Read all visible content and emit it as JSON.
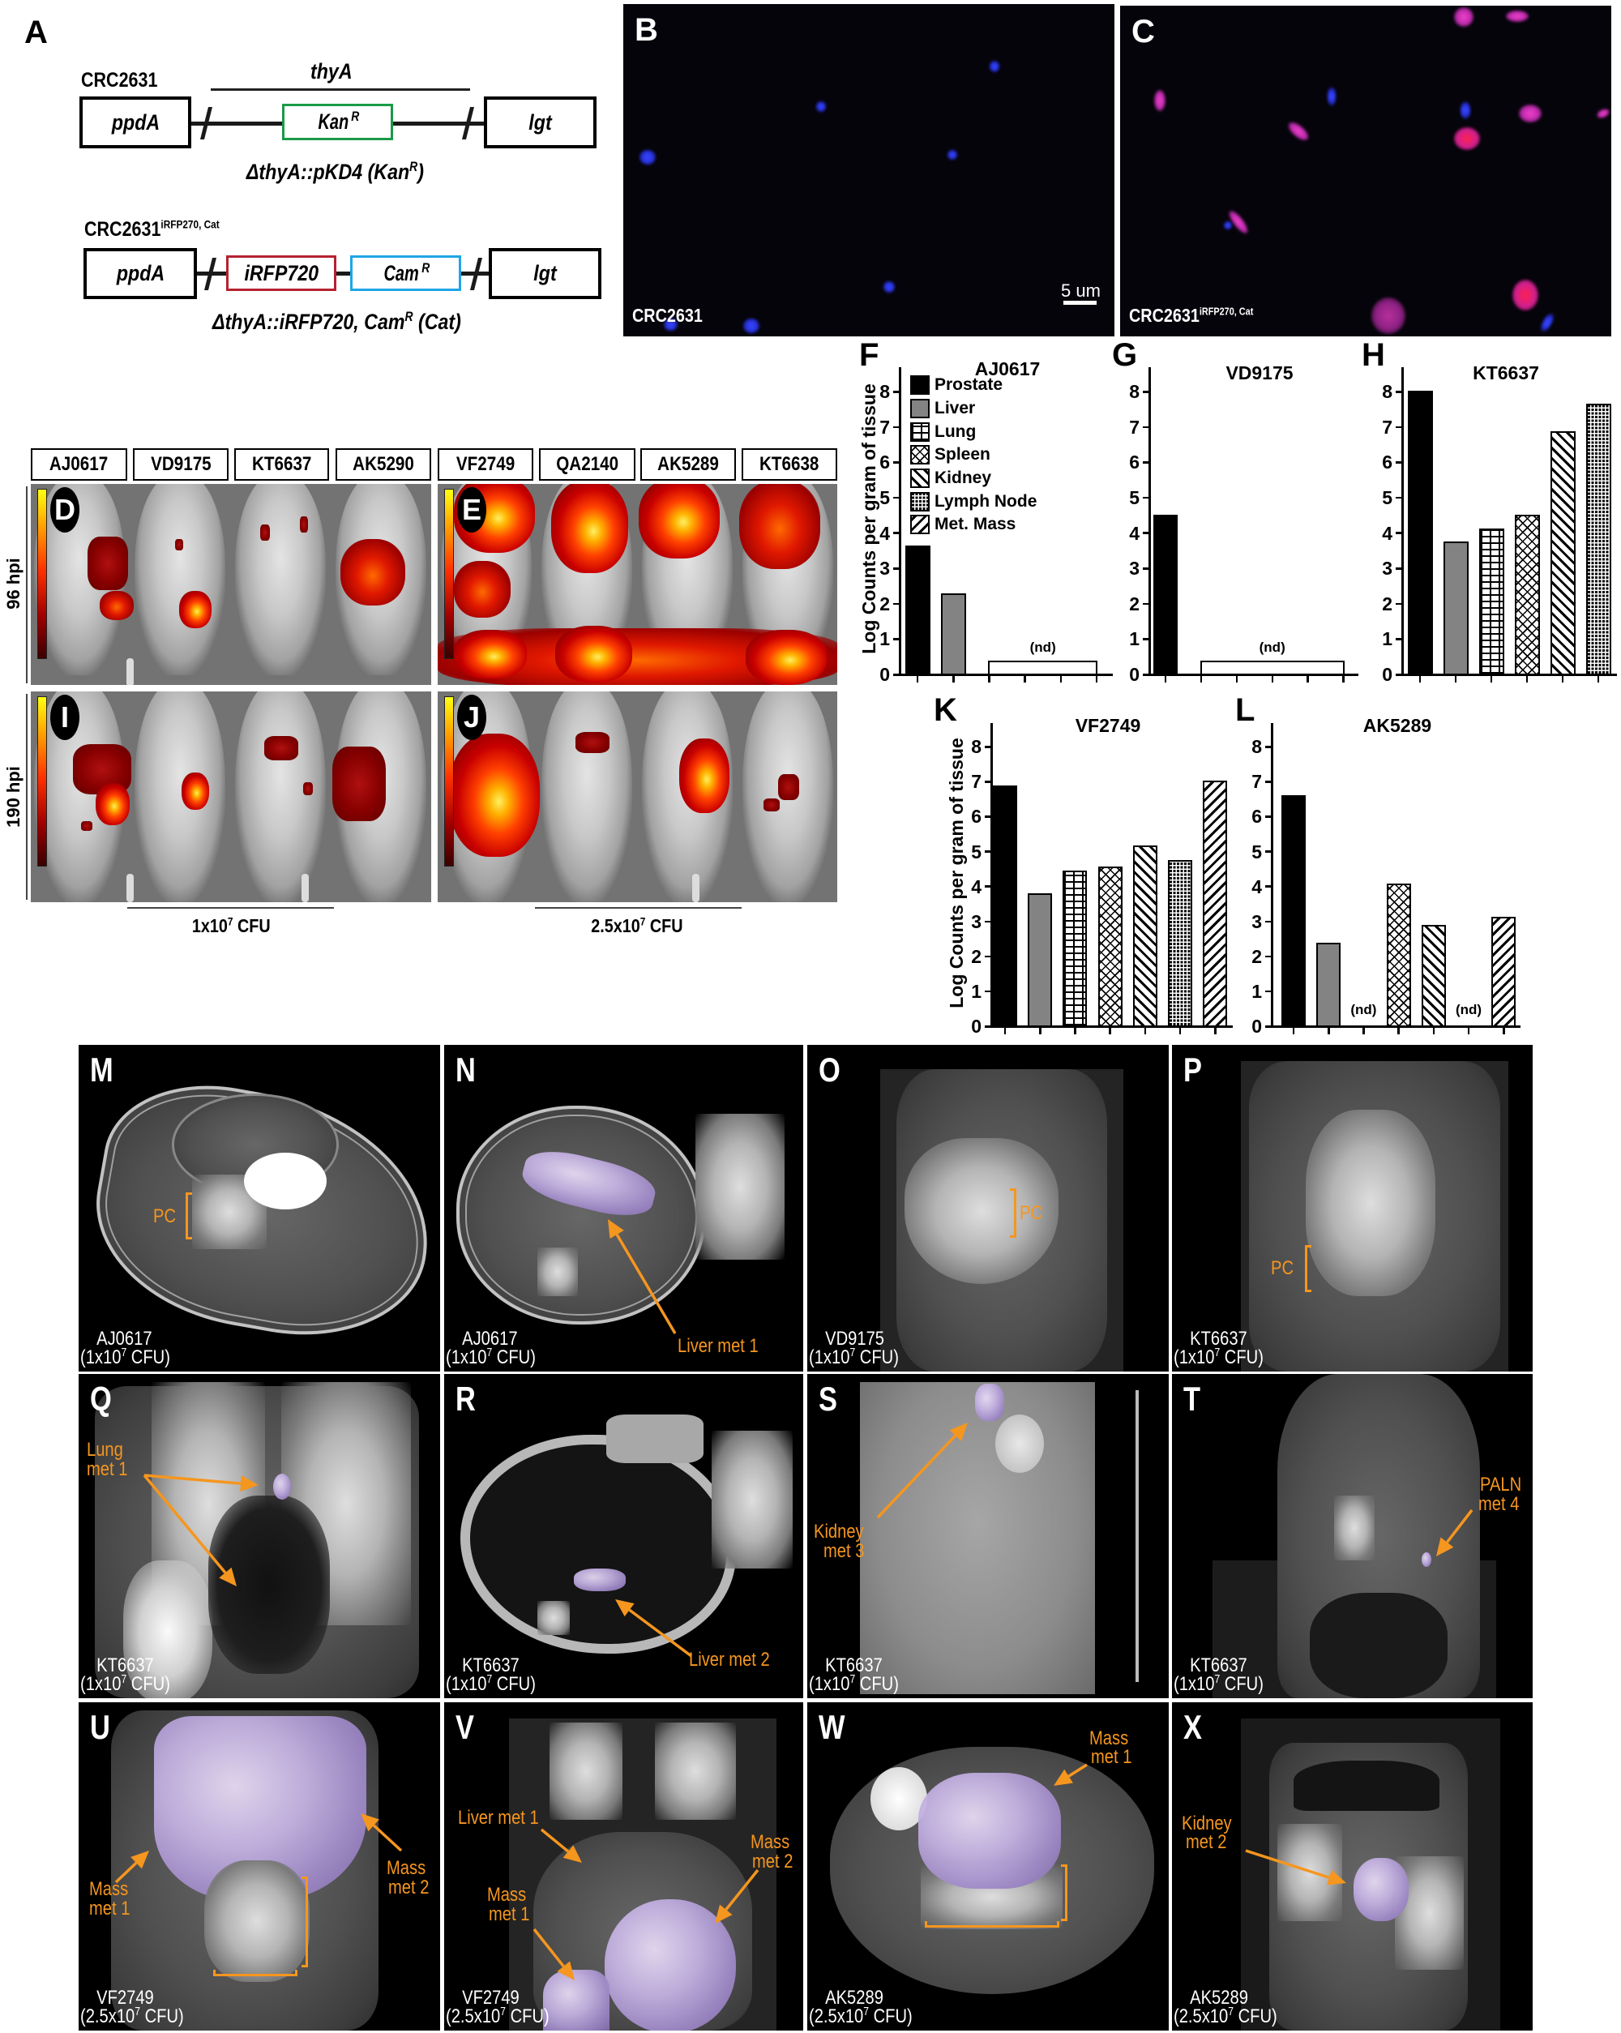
{
  "figure": {
    "colors": {
      "annotation": "#f5961f",
      "overlay": "#c6b3e4",
      "kan_box": "#1a9a48",
      "irfp_box": "#b52231",
      "cam_box": "#1fa6e6"
    },
    "panel_a": {
      "label": "A",
      "wildtype": {
        "strain": "CRC2631",
        "gene_span": "thyA",
        "upstream_gene": "ppdA",
        "marker": "Kan",
        "marker_sup": "R",
        "downstream_gene": "lgt",
        "genotype": "ΔthyA::pKD4 (Kan",
        "genotype_sup": "R",
        "genotype_end": ")"
      },
      "reporter": {
        "strain": "CRC2631",
        "strain_sup": "iRFP270, Cat",
        "upstream_gene": "ppdA",
        "reporter_gene": "iRFP720",
        "marker": "Cam",
        "marker_sup": "R",
        "downstream_gene": "lgt",
        "genotype": "ΔthyA::iRFP720, Cam",
        "genotype_sup": "R",
        "genotype_end": " (Cat)"
      }
    },
    "panel_b": {
      "label": "B",
      "strain": "CRC2631",
      "scale_bar": "5 um"
    },
    "panel_c": {
      "label": "C",
      "strain": "CRC2631",
      "strain_sup": "iRFP270, Cat"
    },
    "ivis": {
      "mouse_labels": [
        "AJ0617",
        "VD9175",
        "KT6637",
        "AK5290",
        "VF2749",
        "QA2140",
        "AK5289",
        "KT6638"
      ],
      "timepoints": [
        "96 hpi",
        "190 hpi"
      ],
      "panels": [
        "D",
        "E",
        "I",
        "J"
      ],
      "doses": [
        {
          "base": "1x10",
          "exp": "7",
          "unit": " CFU"
        },
        {
          "base": "2.5x10",
          "exp": "7",
          "unit": " CFU"
        }
      ]
    },
    "mri_panels": [
      {
        "label": "M",
        "sample": "AJ0617",
        "dose": {
          "base": "(1x10",
          "exp": "7",
          "unit": " CFU)"
        },
        "annotations": [
          {
            "lines": [
              "PC"
            ]
          }
        ]
      },
      {
        "label": "N",
        "sample": "AJ0617",
        "dose": {
          "base": "(1x10",
          "exp": "7",
          "unit": " CFU)"
        },
        "annotations": [
          {
            "lines": [
              "Liver met 1"
            ]
          }
        ]
      },
      {
        "label": "O",
        "sample": "VD9175",
        "dose": {
          "base": "(1x10",
          "exp": "7",
          "unit": " CFU)"
        },
        "annotations": [
          {
            "lines": [
              "PC"
            ]
          }
        ]
      },
      {
        "label": "P",
        "sample": "KT6637",
        "dose": {
          "base": "(1x10",
          "exp": "7",
          "unit": " CFU)"
        },
        "annotations": [
          {
            "lines": [
              "PC"
            ]
          }
        ]
      },
      {
        "label": "Q",
        "sample": "KT6637",
        "dose": {
          "base": "(1x10",
          "exp": "7",
          "unit": " CFU)"
        },
        "annotations": [
          {
            "lines": [
              "Lung",
              "met 1"
            ]
          }
        ]
      },
      {
        "label": "R",
        "sample": "KT6637",
        "dose": {
          "base": "(1x10",
          "exp": "7",
          "unit": " CFU)"
        },
        "annotations": [
          {
            "lines": [
              "Liver met 2"
            ]
          }
        ]
      },
      {
        "label": "S",
        "sample": "KT6637",
        "dose": {
          "base": "(1x10",
          "exp": "7",
          "unit": " CFU)"
        },
        "annotations": [
          {
            "lines": [
              "Kidney",
              "met 3"
            ]
          }
        ]
      },
      {
        "label": "T",
        "sample": "KT6637",
        "dose": {
          "base": "(1x10",
          "exp": "7",
          "unit": " CFU)"
        },
        "annotations": [
          {
            "lines": [
              "PALN",
              "met 4"
            ]
          }
        ]
      },
      {
        "label": "U",
        "sample": "VF2749",
        "dose": {
          "base": "(2.5x10",
          "exp": "7",
          "unit": " CFU)"
        },
        "annotations": [
          {
            "lines": [
              "Mass",
              "met 1"
            ]
          },
          {
            "lines": [
              "Mass",
              "met 2"
            ]
          }
        ]
      },
      {
        "label": "V",
        "sample": "VF2749",
        "dose": {
          "base": "(2.5x10",
          "exp": "7",
          "unit": " CFU)"
        },
        "annotations": [
          {
            "lines": [
              "Liver met 1"
            ]
          },
          {
            "lines": [
              "Mass",
              "met 1"
            ]
          },
          {
            "lines": [
              "Mass",
              "met 2"
            ]
          }
        ]
      },
      {
        "label": "W",
        "sample": "AK5289",
        "dose": {
          "base": "(2.5x10",
          "exp": "7",
          "unit": " CFU)"
        },
        "annotations": [
          {
            "lines": [
              "Mass",
              "met 1"
            ]
          }
        ]
      },
      {
        "label": "X",
        "sample": "AK5289",
        "dose": {
          "base": "(2.5x10",
          "exp": "7",
          "unit": " CFU)"
        },
        "annotations": [
          {
            "lines": [
              "Kidney",
              "met 2"
            ]
          }
        ]
      }
    ]
  },
  "chart_data": [
    {
      "panel": "F",
      "type": "bar",
      "title": "AJ0617",
      "ylabel": "Log Counts per gram of tissue",
      "ylim": [
        0,
        8
      ],
      "categories": [
        "Prostate",
        "Liver",
        "Lung",
        "Spleen",
        "Kidney",
        "Lymph Node"
      ],
      "values": [
        3.65,
        2.3,
        null,
        null,
        null,
        null
      ],
      "not_detected": {
        "label": "(nd)",
        "from": 2,
        "to": 5,
        "bracket_level": 0.4
      },
      "legend": [
        "Prostate",
        "Liver",
        "Lung",
        "Spleen",
        "Kidney",
        "Lymph Node",
        "Met. Mass"
      ],
      "legend_position": "upper-left inside"
    },
    {
      "panel": "G",
      "type": "bar",
      "title": "VD9175",
      "ylim": [
        0,
        8
      ],
      "categories": [
        "Prostate",
        "Liver",
        "Lung",
        "Spleen",
        "Kidney",
        "Lymph Node"
      ],
      "values": [
        4.52,
        null,
        null,
        null,
        null,
        null
      ],
      "not_detected": {
        "label": "(nd)",
        "from": 1,
        "to": 5,
        "bracket_level": 0.4
      }
    },
    {
      "panel": "H",
      "type": "bar",
      "title": "KT6637",
      "ylim": [
        0,
        8
      ],
      "categories": [
        "Prostate",
        "Liver",
        "Lung",
        "Spleen",
        "Kidney",
        "Lymph Node"
      ],
      "values": [
        8.02,
        3.77,
        4.12,
        4.52,
        6.88,
        7.67
      ]
    },
    {
      "panel": "K",
      "type": "bar",
      "title": "VF2749",
      "ylabel": "Log Counts per gram of tissue",
      "ylim": [
        0,
        8
      ],
      "categories": [
        "Prostate",
        "Liver",
        "Lung",
        "Spleen",
        "Kidney",
        "Lymph Node",
        "Met. Mass"
      ],
      "values": [
        6.89,
        3.8,
        4.46,
        4.56,
        5.18,
        4.75,
        7.02
      ]
    },
    {
      "panel": "L",
      "type": "bar",
      "title": "AK5289",
      "ylim": [
        0,
        8
      ],
      "categories": [
        "Prostate",
        "Liver",
        "Lung",
        "Spleen",
        "Kidney",
        "Lymph Node",
        "Met. Mass"
      ],
      "values": [
        6.62,
        2.39,
        null,
        4.08,
        2.89,
        null,
        3.14
      ],
      "not_detected": {
        "label": "(nd)",
        "indices": [
          2,
          5
        ]
      }
    }
  ]
}
